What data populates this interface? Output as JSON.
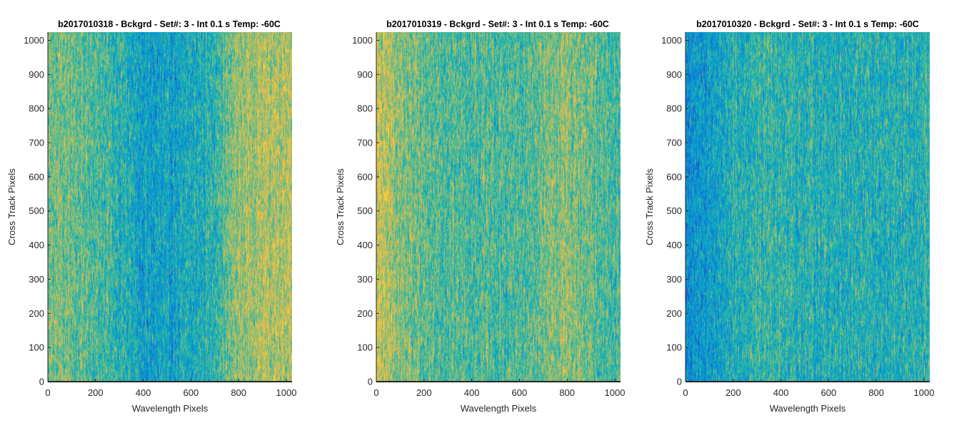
{
  "chart_data": [
    {
      "type": "heatmap",
      "title": "b2017010318 - Bckgrd - Set#: 3 - Int 0.1 s Temp: -60C",
      "xlabel": "Wavelength Pixels",
      "ylabel": "Cross Track Pixels",
      "xlim": [
        0,
        1024
      ],
      "ylim": [
        0,
        1024
      ],
      "xticks": [
        "0",
        "200",
        "400",
        "600",
        "800",
        "1000"
      ],
      "yticks": [
        "0",
        "100",
        "200",
        "300",
        "400",
        "500",
        "600",
        "700",
        "800",
        "900",
        "1000"
      ],
      "colormap": "parula",
      "column_profile": {
        "x": [
          0,
          100,
          200,
          300,
          400,
          500,
          600,
          700,
          800,
          900,
          1024
        ],
        "level": [
          0.55,
          0.52,
          0.48,
          0.42,
          0.32,
          0.33,
          0.36,
          0.42,
          0.58,
          0.62,
          0.64
        ]
      }
    },
    {
      "type": "heatmap",
      "title": "b2017010319 - Bckgrd - Set#: 3 - Int 0.1 s Temp: -60C",
      "xlabel": "Wavelength Pixels",
      "ylabel": "Cross Track Pixels",
      "xlim": [
        0,
        1024
      ],
      "ylim": [
        0,
        1024
      ],
      "xticks": [
        "0",
        "200",
        "400",
        "600",
        "800",
        "1000"
      ],
      "yticks": [
        "0",
        "100",
        "200",
        "300",
        "400",
        "500",
        "600",
        "700",
        "800",
        "900",
        "1000"
      ],
      "colormap": "parula",
      "column_profile": {
        "x": [
          0,
          50,
          100,
          200,
          300,
          400,
          500,
          600,
          700,
          800,
          900,
          1024
        ],
        "level": [
          0.66,
          0.62,
          0.56,
          0.5,
          0.48,
          0.48,
          0.47,
          0.47,
          0.52,
          0.57,
          0.5,
          0.47
        ]
      }
    },
    {
      "type": "heatmap",
      "title": "b2017010320 - Bckgrd - Set#: 3 - Int 0.1 s Temp: -60C",
      "xlabel": "Wavelength Pixels",
      "ylabel": "Cross Track Pixels",
      "xlim": [
        0,
        1024
      ],
      "ylim": [
        0,
        1024
      ],
      "xticks": [
        "0",
        "200",
        "400",
        "600",
        "800",
        "1000"
      ],
      "yticks": [
        "0",
        "100",
        "200",
        "300",
        "400",
        "500",
        "600",
        "700",
        "800",
        "900",
        "1000"
      ],
      "colormap": "parula",
      "column_profile": {
        "x": [
          0,
          50,
          100,
          200,
          300,
          400,
          500,
          600,
          700,
          800,
          900,
          1024
        ],
        "level": [
          0.26,
          0.28,
          0.32,
          0.38,
          0.42,
          0.44,
          0.4,
          0.4,
          0.4,
          0.39,
          0.39,
          0.4
        ]
      }
    }
  ]
}
